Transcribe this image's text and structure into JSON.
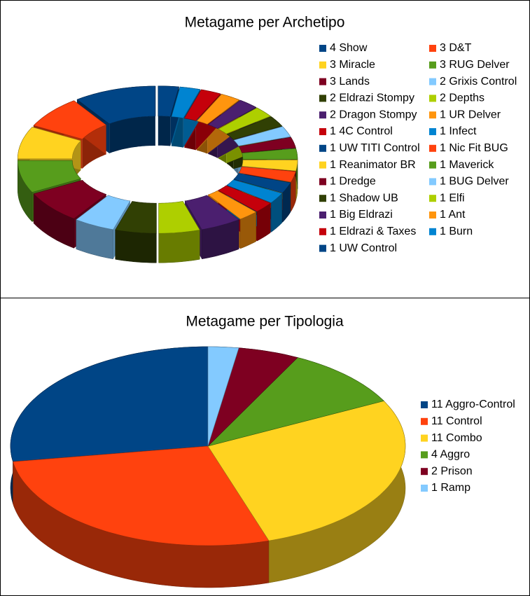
{
  "chart_data": [
    {
      "type": "donut",
      "title": "Metagame per Archetipo",
      "categories": [
        "4 Show",
        "3 D&T",
        "3 Miracle",
        "3 RUG Delver",
        "3 Lands",
        "2 Grixis Control",
        "2 Eldrazi Stompy",
        "2 Depths",
        "2 Dragon Stompy",
        "1 UR Delver",
        "1 4C Control",
        "1 Infect",
        "1 UW TITI Control",
        "1 Nic Fit BUG",
        "1 Reanimator BR",
        "1 Maverick",
        "1 Dredge",
        "1 BUG Delver",
        "1 Shadow UB",
        "1 Elfi",
        "1 Big Eldrazi",
        "1 Ant",
        "1 Eldrazi & Taxes",
        "1 Burn",
        "1 UW Control"
      ],
      "values": [
        4,
        3,
        3,
        3,
        3,
        2,
        2,
        2,
        2,
        1,
        1,
        1,
        1,
        1,
        1,
        1,
        1,
        1,
        1,
        1,
        1,
        1,
        1,
        1,
        1
      ],
      "colors": [
        "#004586",
        "#ff420e",
        "#ffd320",
        "#579d1c",
        "#7e0021",
        "#83caff",
        "#314004",
        "#aecf00",
        "#4b1f6f",
        "#ff950e",
        "#c5000b",
        "#0084d1",
        "#004586",
        "#ff420e",
        "#ffd320",
        "#579d1c",
        "#7e0021",
        "#83caff",
        "#314004",
        "#aecf00",
        "#4b1f6f",
        "#ff950e",
        "#c5000b",
        "#0084d1",
        "#004586"
      ]
    },
    {
      "type": "pie",
      "title": "Metagame per Tipologia",
      "categories": [
        "11 Aggro-Control",
        "11 Control",
        "11 Combo",
        "4 Aggro",
        "2 Prison",
        "1 Ramp"
      ],
      "values": [
        11,
        11,
        11,
        4,
        2,
        1
      ],
      "colors": [
        "#004586",
        "#ff420e",
        "#ffd320",
        "#579d1c",
        "#7e0021",
        "#83caff"
      ]
    }
  ]
}
